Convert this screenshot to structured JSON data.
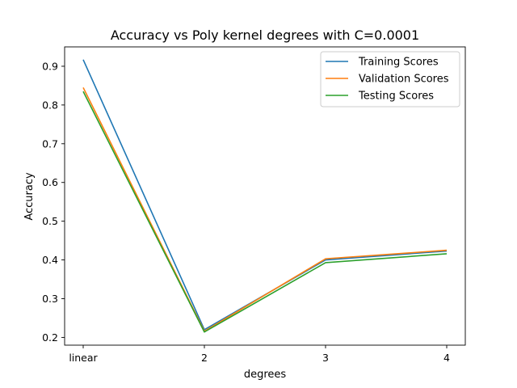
{
  "chart_data": {
    "type": "line",
    "title": "Accuracy vs Poly kernel degrees with C=0.0001",
    "xlabel": "degrees",
    "ylabel": "Accuracy",
    "categories": [
      "linear",
      "2",
      "3",
      "4"
    ],
    "ylim": [
      0.18,
      0.95
    ],
    "yticks": [
      0.2,
      0.3,
      0.4,
      0.5,
      0.6,
      0.7,
      0.8,
      0.9
    ],
    "ytick_labels": [
      "0.2",
      "0.3",
      "0.4",
      "0.5",
      "0.6",
      "0.7",
      "0.8",
      "0.9"
    ],
    "grid": false,
    "legend_position": "top-right",
    "series": [
      {
        "name": "Training Scores",
        "color": "#1f77b4",
        "values": [
          0.917,
          0.22,
          0.4,
          0.423
        ]
      },
      {
        "name": "Validation Scores",
        "color": "#ff7f0e",
        "values": [
          0.845,
          0.216,
          0.403,
          0.425
        ]
      },
      {
        "name": "Testing Scores",
        "color": "#2ca02c",
        "values": [
          0.835,
          0.214,
          0.393,
          0.416
        ]
      }
    ]
  }
}
